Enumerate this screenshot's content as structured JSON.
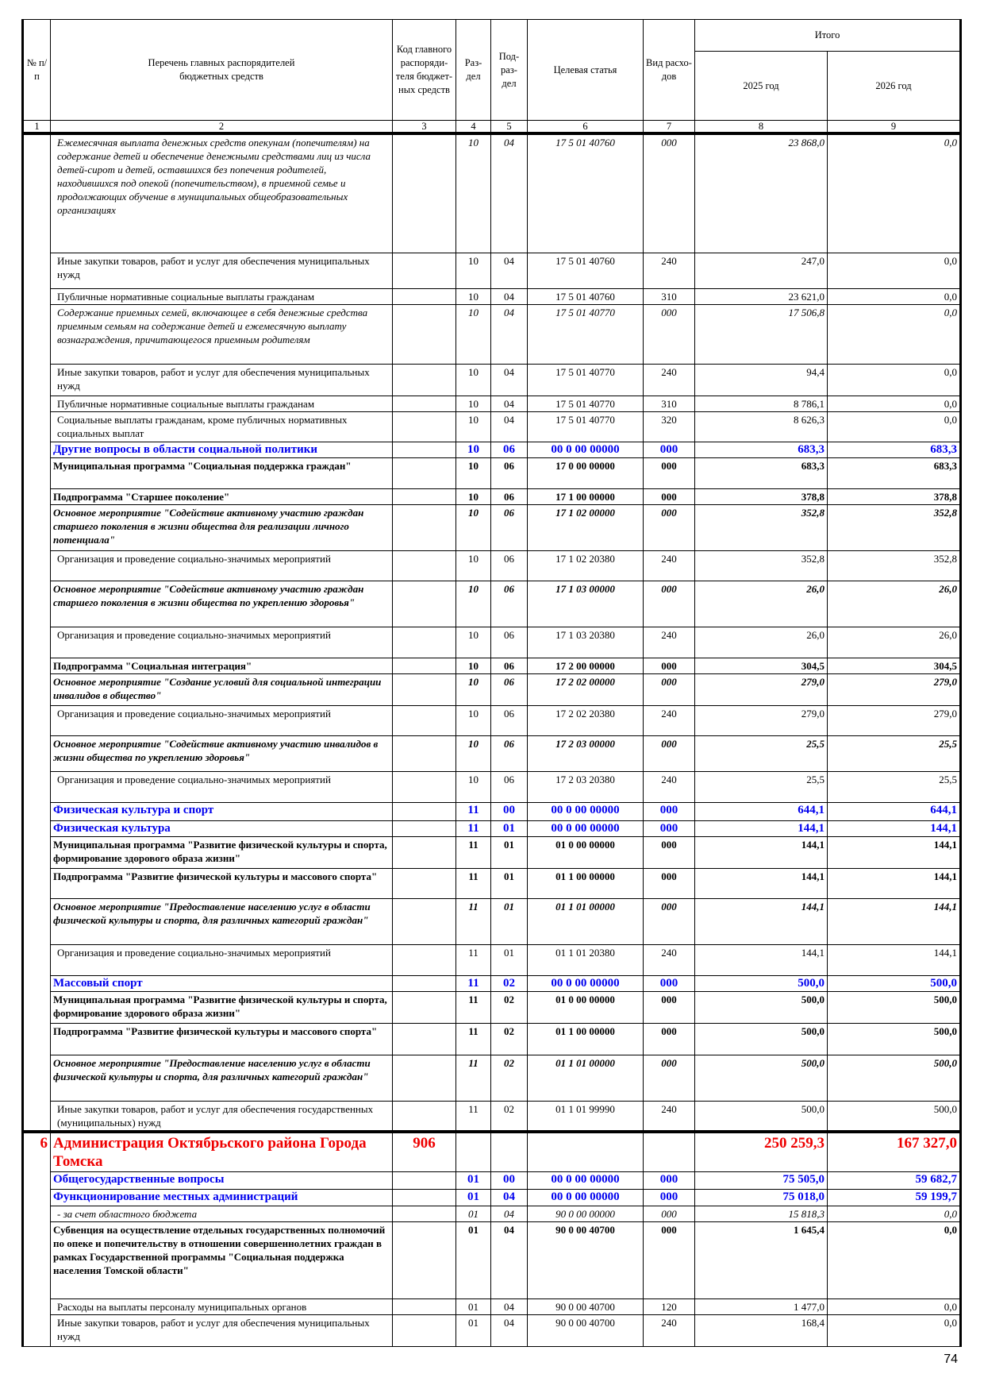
{
  "header": {
    "col_num": "№ п/п",
    "col_name": "Перечень главных распорядителей бюджетных средств",
    "col_code": "Код главного распоряди-теля бюджет-ных средств",
    "col_razdel": "Раз-дел",
    "col_podrazdel": "Под-раз-дел",
    "col_cs": "Целевая статья",
    "col_vr": "Вид расхо-дов",
    "col_total": "Итого",
    "col_2025": "2025 год",
    "col_2026": "2026 год",
    "numbers": [
      "1",
      "2",
      "3",
      "4",
      "5",
      "6",
      "7",
      "8",
      "9"
    ]
  },
  "rows": [
    {
      "level": "i",
      "num": "",
      "name": "Ежемесячная выплата денежных средств опекунам (попечителям) на содержание детей и обеспечение денежными средствами лиц из числа детей-сирот и детей, оставшихся без попечения родителей, находившихся под опекой (попечительством), в приемной семье и продолжающих обучение в муниципальных общеобразовательных организациях",
      "code": "",
      "razdel": "10",
      "podrazdel": "04",
      "cs": "17 5 01 40760",
      "vr": "000",
      "y2025": "23 868,0",
      "y2026": "0,0"
    },
    {
      "level": "n",
      "num": "",
      "name": "Иные закупки товаров, работ и услуг для обеспечения муниципальных нужд",
      "code": "",
      "razdel": "10",
      "podrazdel": "04",
      "cs": "17 5 01 40760",
      "vr": "240",
      "y2025": "247,0",
      "y2026": "0,0"
    },
    {
      "level": "n",
      "num": "",
      "name": "Публичные нормативные социальные выплаты гражданам",
      "code": "",
      "razdel": "10",
      "podrazdel": "04",
      "cs": "17 5 01 40760",
      "vr": "310",
      "y2025": "23 621,0",
      "y2026": "0,0"
    },
    {
      "level": "i",
      "num": "",
      "name": "Содержание приемных семей, включающее в себя денежные средства приемным семьям на содержание детей и ежемесячную выплату вознаграждения, причитающегося приемным родителям",
      "code": "",
      "razdel": "10",
      "podrazdel": "04",
      "cs": "17 5 01 40770",
      "vr": "000",
      "y2025": "17 506,8",
      "y2026": "0,0"
    },
    {
      "level": "n",
      "num": "",
      "name": "Иные закупки товаров, работ и услуг для обеспечения муниципальных нужд",
      "code": "",
      "razdel": "10",
      "podrazdel": "04",
      "cs": "17 5 01 40770",
      "vr": "240",
      "y2025": "94,4",
      "y2026": "0,0"
    },
    {
      "level": "n",
      "num": "",
      "name": "Публичные нормативные социальные выплаты гражданам",
      "code": "",
      "razdel": "10",
      "podrazdel": "04",
      "cs": "17 5 01 40770",
      "vr": "310",
      "y2025": "8 786,1",
      "y2026": "0,0"
    },
    {
      "level": "n",
      "num": "",
      "name": "Социальные выплаты гражданам, кроме публичных нормативных социальных выплат",
      "code": "",
      "razdel": "10",
      "podrazdel": "04",
      "cs": "17 5 01 40770",
      "vr": "320",
      "y2025": "8 626,3",
      "y2026": "0,0"
    },
    {
      "level": "blue",
      "num": "",
      "name": "Другие вопросы в области социальной политики",
      "code": "",
      "razdel": "10",
      "podrazdel": "06",
      "cs": "00 0 00 00000",
      "vr": "000",
      "y2025": "683,3",
      "y2026": "683,3"
    },
    {
      "level": "b",
      "num": "",
      "name": "Муниципальная программа \"Социальная поддержка граждан\"",
      "code": "",
      "razdel": "10",
      "podrazdel": "06",
      "cs": "17 0 00 00000",
      "vr": "000",
      "y2025": "683,3",
      "y2026": "683,3"
    },
    {
      "level": "b",
      "num": "",
      "name": "Подпрограмма \"Старшее поколение\"",
      "code": "",
      "razdel": "10",
      "podrazdel": "06",
      "cs": "17 1 00 00000",
      "vr": "000",
      "y2025": "378,8",
      "y2026": "378,8"
    },
    {
      "level": "bi",
      "num": "",
      "name": "Основное мероприятие \"Содействие активному участию граждан старшего поколения в жизни общества для реализации личного потенциала\"",
      "code": "",
      "razdel": "10",
      "podrazdel": "06",
      "cs": "17 1 02 00000",
      "vr": "000",
      "y2025": "352,8",
      "y2026": "352,8"
    },
    {
      "level": "n",
      "num": "",
      "name": "Организация и проведение социально-значимых мероприятий",
      "code": "",
      "razdel": "10",
      "podrazdel": "06",
      "cs": "17 1 02 20380",
      "vr": "240",
      "y2025": "352,8",
      "y2026": "352,8"
    },
    {
      "level": "bi",
      "num": "",
      "name": "Основное мероприятие \"Содействие активному участию граждан старшего поколения в жизни общества по укреплению здоровья\"",
      "code": "",
      "razdel": "10",
      "podrazdel": "06",
      "cs": "17 1 03 00000",
      "vr": "000",
      "y2025": "26,0",
      "y2026": "26,0"
    },
    {
      "level": "n",
      "num": "",
      "name": "Организация и проведение социально-значимых мероприятий",
      "code": "",
      "razdel": "10",
      "podrazdel": "06",
      "cs": "17 1 03 20380",
      "vr": "240",
      "y2025": "26,0",
      "y2026": "26,0"
    },
    {
      "level": "b",
      "num": "",
      "name": "Подпрограмма \"Социальная интеграция\"",
      "code": "",
      "razdel": "10",
      "podrazdel": "06",
      "cs": "17 2 00 00000",
      "vr": "000",
      "y2025": "304,5",
      "y2026": "304,5"
    },
    {
      "level": "bi",
      "num": "",
      "name": "Основное мероприятие \"Создание условий для социальной интеграции инвалидов в общество\"",
      "code": "",
      "razdel": "10",
      "podrazdel": "06",
      "cs": "17 2 02 00000",
      "vr": "000",
      "y2025": "279,0",
      "y2026": "279,0"
    },
    {
      "level": "n",
      "num": "",
      "name": "Организация и проведение социально-значимых мероприятий",
      "code": "",
      "razdel": "10",
      "podrazdel": "06",
      "cs": "17 2 02 20380",
      "vr": "240",
      "y2025": "279,0",
      "y2026": "279,0"
    },
    {
      "level": "bi",
      "num": "",
      "name": "Основное мероприятие \"Содействие активному участию инвалидов в жизни общества по укреплению здоровья\"",
      "code": "",
      "razdel": "10",
      "podrazdel": "06",
      "cs": "17 2 03 00000",
      "vr": "000",
      "y2025": "25,5",
      "y2026": "25,5"
    },
    {
      "level": "n",
      "num": "",
      "name": "Организация и проведение социально-значимых мероприятий",
      "code": "",
      "razdel": "10",
      "podrazdel": "06",
      "cs": "17 2 03 20380",
      "vr": "240",
      "y2025": "25,5",
      "y2026": "25,5"
    },
    {
      "level": "blue",
      "num": "",
      "name": "Физическая культура и спорт",
      "code": "",
      "razdel": "11",
      "podrazdel": "00",
      "cs": "00 0 00 00000",
      "vr": "000",
      "y2025": "644,1",
      "y2026": "644,1"
    },
    {
      "level": "blue",
      "num": "",
      "name": "Физическая культура",
      "code": "",
      "razdel": "11",
      "podrazdel": "01",
      "cs": "00 0 00 00000",
      "vr": "000",
      "y2025": "144,1",
      "y2026": "144,1"
    },
    {
      "level": "b",
      "num": "",
      "name": "Муниципальная программа \"Развитие физической культуры и спорта, формирование здорового образа жизни\"",
      "code": "",
      "razdel": "11",
      "podrazdel": "01",
      "cs": "01 0 00 00000",
      "vr": "000",
      "y2025": "144,1",
      "y2026": "144,1"
    },
    {
      "level": "b",
      "num": "",
      "name": "Подпрограмма \"Развитие физической культуры и массового спорта\"",
      "code": "",
      "razdel": "11",
      "podrazdel": "01",
      "cs": "01 1 00 00000",
      "vr": "000",
      "y2025": "144,1",
      "y2026": "144,1"
    },
    {
      "level": "bi",
      "num": "",
      "name": "Основное мероприятие \"Предоставление населению услуг в области физической культуры и спорта, для различных категорий граждан\"",
      "code": "",
      "razdel": "11",
      "podrazdel": "01",
      "cs": "01 1 01 00000",
      "vr": "000",
      "y2025": "144,1",
      "y2026": "144,1"
    },
    {
      "level": "n",
      "num": "",
      "name": "Организация и проведение социально-значимых мероприятий",
      "code": "",
      "razdel": "11",
      "podrazdel": "01",
      "cs": "01 1 01 20380",
      "vr": "240",
      "y2025": "144,1",
      "y2026": "144,1"
    },
    {
      "level": "blue",
      "num": "",
      "name": "Массовый спорт",
      "code": "",
      "razdel": "11",
      "podrazdel": "02",
      "cs": "00 0 00 00000",
      "vr": "000",
      "y2025": "500,0",
      "y2026": "500,0"
    },
    {
      "level": "b",
      "num": "",
      "name": "Муниципальная программа \"Развитие физической культуры и спорта, формирование здорового образа жизни\"",
      "code": "",
      "razdel": "11",
      "podrazdel": "02",
      "cs": "01 0 00 00000",
      "vr": "000",
      "y2025": "500,0",
      "y2026": "500,0"
    },
    {
      "level": "b",
      "num": "",
      "name": "Подпрограмма \"Развитие физической культуры и массового спорта\"",
      "code": "",
      "razdel": "11",
      "podrazdel": "02",
      "cs": "01 1 00 00000",
      "vr": "000",
      "y2025": "500,0",
      "y2026": "500,0"
    },
    {
      "level": "bi",
      "num": "",
      "name": "Основное мероприятие \"Предоставление населению услуг в области физической культуры и спорта, для различных категорий граждан\"",
      "code": "",
      "razdel": "11",
      "podrazdel": "02",
      "cs": "01 1 01 00000",
      "vr": "000",
      "y2025": "500,0",
      "y2026": "500,0"
    },
    {
      "level": "n",
      "num": "",
      "name": "Иные закупки товаров, работ и услуг для обеспечения государственных (муниципальных) нужд",
      "code": "",
      "razdel": "11",
      "podrazdel": "02",
      "cs": "01 1 01 99990",
      "vr": "240",
      "y2025": "500,0",
      "y2026": "500,0"
    },
    {
      "level": "red",
      "num": "6",
      "name": "Администрация Октябрьского района Города Томска",
      "code": "906",
      "razdel": "",
      "podrazdel": "",
      "cs": "",
      "vr": "",
      "y2025": "250 259,3",
      "y2026": "167 327,0"
    },
    {
      "level": "blue",
      "num": "",
      "name": "Общегосударственные вопросы",
      "code": "",
      "razdel": "01",
      "podrazdel": "00",
      "cs": "00 0 00 00000",
      "vr": "000",
      "y2025": "75 505,0",
      "y2026": "59 682,7"
    },
    {
      "level": "blue",
      "num": "",
      "name": "Функционирование местных администраций",
      "code": "",
      "razdel": "01",
      "podrazdel": "04",
      "cs": "00 0 00 00000",
      "vr": "000",
      "y2025": "75 018,0",
      "y2026": "59 199,7"
    },
    {
      "level": "i",
      "num": "",
      "name": "- за счет областного бюджета",
      "code": "",
      "razdel": "01",
      "podrazdel": "04",
      "cs": "90 0 00 00000",
      "vr": "000",
      "y2025": "15 818,3",
      "y2026": "0,0"
    },
    {
      "level": "b",
      "num": "",
      "name": "Субвенция на осуществление отдельных государственных полномочий по опеке и попечительству в отношении совершеннолетних граждан в рамках Государственной программы \"Социальная поддержка населения Томской области\"",
      "code": "",
      "razdel": "01",
      "podrazdel": "04",
      "cs": "90 0 00 40700",
      "vr": "000",
      "y2025": "1 645,4",
      "y2026": "0,0"
    },
    {
      "level": "n",
      "num": "",
      "name": "Расходы на выплаты персоналу муниципальных органов",
      "code": "",
      "razdel": "01",
      "podrazdel": "04",
      "cs": "90 0 00 40700",
      "vr": "120",
      "y2025": "1 477,0",
      "y2026": "0,0"
    },
    {
      "level": "n",
      "num": "",
      "name": "Иные закупки товаров, работ и услуг для обеспечения муниципальных нужд",
      "code": "",
      "razdel": "01",
      "podrazdel": "04",
      "cs": "90 0 00 40700",
      "vr": "240",
      "y2025": "168,4",
      "y2026": "0,0"
    }
  ],
  "colors": {
    "section_blue": "#0000ee",
    "department_red": "#ee0000"
  },
  "page_number": "74"
}
